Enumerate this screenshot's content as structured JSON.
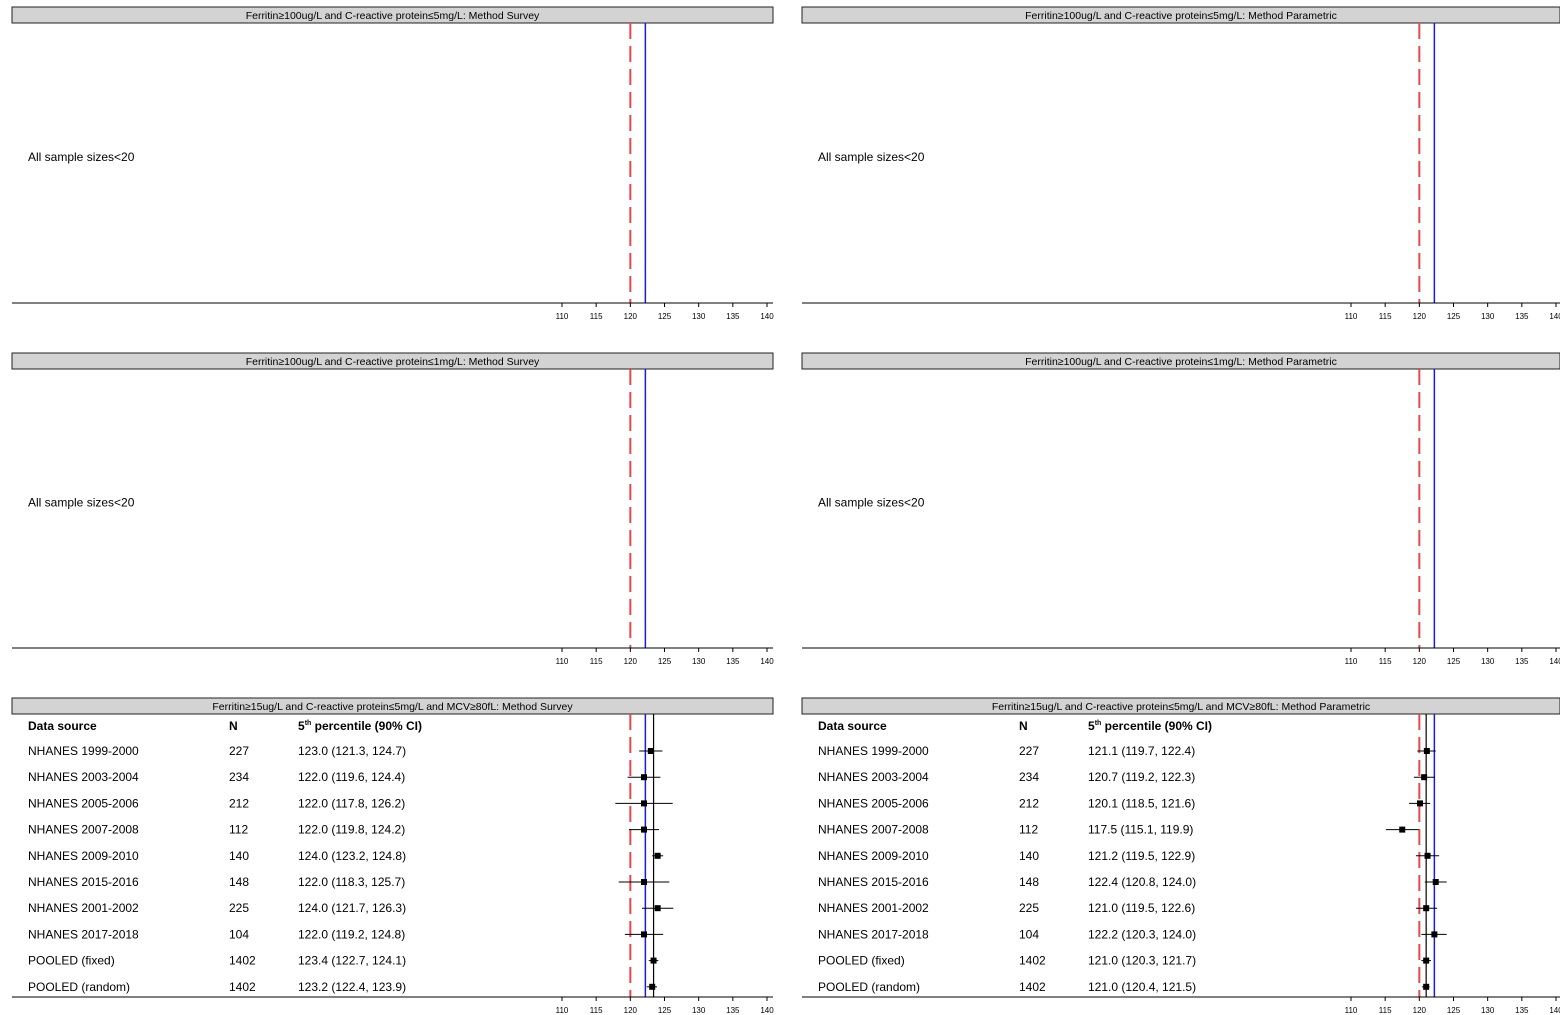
{
  "colors": {
    "reference_line": "#e8474c",
    "estimate_line": "#1a1adf",
    "pooled_line": "#000000",
    "header_fill": "#d3d3d3"
  },
  "x_axis": {
    "ticks": [
      110,
      115,
      120,
      125,
      130,
      135,
      140
    ]
  },
  "reference_value": 120,
  "column_headers": {
    "source": "Data source",
    "n": "N",
    "estimate_base": "5",
    "estimate_sup": "th",
    "estimate_rest": " percentile (90% CI)"
  },
  "chart_data": [
    {
      "type": "forest",
      "title": "Ferritin≥100ug/L and C-reactive protein≤5mg/L: Method Survey",
      "message": "All sample sizes<20",
      "estimate_line": 122.2,
      "rows": []
    },
    {
      "type": "forest",
      "title": "Ferritin≥100ug/L and C-reactive protein≤5mg/L: Method Parametric",
      "message": "All sample sizes<20",
      "estimate_line": 122.2,
      "rows": []
    },
    {
      "type": "forest",
      "title": "Ferritin≥100ug/L and C-reactive protein≤1mg/L: Method Survey",
      "message": "All sample sizes<20",
      "estimate_line": 122.2,
      "rows": []
    },
    {
      "type": "forest",
      "title": "Ferritin≥100ug/L and C-reactive protein≤1mg/L: Method Parametric",
      "message": "All sample sizes<20",
      "estimate_line": 122.2,
      "rows": []
    },
    {
      "type": "forest",
      "title": "Ferritin≥15ug/L and C-reactive protein≤5mg/L and MCV≥80fL: Method Survey",
      "message": "",
      "estimate_line": 122.2,
      "pooled_line": 123.4,
      "rows": [
        {
          "source": "NHANES 1999-2000",
          "n": "227",
          "ci_text": "123.0 (121.3, 124.7)",
          "est": 123.0,
          "lo": 121.3,
          "hi": 124.7
        },
        {
          "source": "NHANES 2003-2004",
          "n": "234",
          "ci_text": "122.0 (119.6, 124.4)",
          "est": 122.0,
          "lo": 119.6,
          "hi": 124.4
        },
        {
          "source": "NHANES 2005-2006",
          "n": "212",
          "ci_text": "122.0 (117.8, 126.2)",
          "est": 122.0,
          "lo": 117.8,
          "hi": 126.2
        },
        {
          "source": "NHANES 2007-2008",
          "n": "112",
          "ci_text": "122.0 (119.8, 124.2)",
          "est": 122.0,
          "lo": 119.8,
          "hi": 124.2
        },
        {
          "source": "NHANES 2009-2010",
          "n": "140",
          "ci_text": "124.0 (123.2, 124.8)",
          "est": 124.0,
          "lo": 123.2,
          "hi": 124.8
        },
        {
          "source": "NHANES 2015-2016",
          "n": "148",
          "ci_text": "122.0 (118.3, 125.7)",
          "est": 122.0,
          "lo": 118.3,
          "hi": 125.7
        },
        {
          "source": "NHANES 2001-2002",
          "n": "225",
          "ci_text": "124.0 (121.7, 126.3)",
          "est": 124.0,
          "lo": 121.7,
          "hi": 126.3
        },
        {
          "source": "NHANES 2017-2018",
          "n": "104",
          "ci_text": "122.0 (119.2, 124.8)",
          "est": 122.0,
          "lo": 119.2,
          "hi": 124.8
        },
        {
          "source": "POOLED (fixed)",
          "n": "1402",
          "ci_text": "123.4 (122.7, 124.1)",
          "est": 123.4,
          "lo": 122.7,
          "hi": 124.1
        },
        {
          "source": "POOLED (random)",
          "n": "1402",
          "ci_text": "123.2 (122.4, 123.9)",
          "est": 123.2,
          "lo": 122.4,
          "hi": 123.9
        }
      ]
    },
    {
      "type": "forest",
      "title": "Ferritin≥15ug/L and C-reactive protein≤5mg/L and MCV≥80fL: Method Parametric",
      "message": "",
      "estimate_line": 122.2,
      "pooled_line": 121.0,
      "rows": [
        {
          "source": "NHANES 1999-2000",
          "n": "227",
          "ci_text": "121.1 (119.7, 122.4)",
          "est": 121.1,
          "lo": 119.7,
          "hi": 122.4
        },
        {
          "source": "NHANES 2003-2004",
          "n": "234",
          "ci_text": "120.7 (119.2, 122.3)",
          "est": 120.7,
          "lo": 119.2,
          "hi": 122.3
        },
        {
          "source": "NHANES 2005-2006",
          "n": "212",
          "ci_text": "120.1 (118.5, 121.6)",
          "est": 120.1,
          "lo": 118.5,
          "hi": 121.6
        },
        {
          "source": "NHANES 2007-2008",
          "n": "112",
          "ci_text": "117.5 (115.1, 119.9)",
          "est": 117.5,
          "lo": 115.1,
          "hi": 119.9
        },
        {
          "source": "NHANES 2009-2010",
          "n": "140",
          "ci_text": "121.2 (119.5, 122.9)",
          "est": 121.2,
          "lo": 119.5,
          "hi": 122.9
        },
        {
          "source": "NHANES 2015-2016",
          "n": "148",
          "ci_text": "122.4 (120.8, 124.0)",
          "est": 122.4,
          "lo": 120.8,
          "hi": 124.0
        },
        {
          "source": "NHANES 2001-2002",
          "n": "225",
          "ci_text": "121.0 (119.5, 122.6)",
          "est": 121.0,
          "lo": 119.5,
          "hi": 122.6
        },
        {
          "source": "NHANES 2017-2018",
          "n": "104",
          "ci_text": "122.2 (120.3, 124.0)",
          "est": 122.2,
          "lo": 120.3,
          "hi": 124.0
        },
        {
          "source": "POOLED (fixed)",
          "n": "1402",
          "ci_text": "121.0 (120.3, 121.7)",
          "est": 121.0,
          "lo": 120.3,
          "hi": 121.7
        },
        {
          "source": "POOLED (random)",
          "n": "1402",
          "ci_text": "121.0 (120.4, 121.5)",
          "est": 121.0,
          "lo": 120.4,
          "hi": 121.5
        }
      ]
    }
  ]
}
